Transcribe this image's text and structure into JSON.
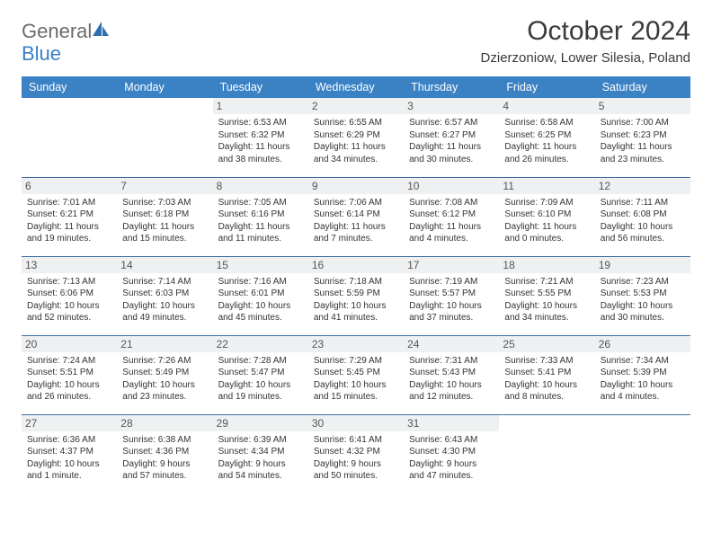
{
  "brand": {
    "part1": "General",
    "part2": "Blue"
  },
  "title": "October 2024",
  "location": "Dzierzoniow, Lower Silesia, Poland",
  "colors": {
    "header_bg": "#3b82c4",
    "header_text": "#ffffff",
    "row_divider": "#3b6fa0",
    "daynum_bg": "#eef0f2",
    "logo_gray": "#6b6b6b",
    "logo_blue": "#3b7fc4"
  },
  "weekdays": [
    "Sunday",
    "Monday",
    "Tuesday",
    "Wednesday",
    "Thursday",
    "Friday",
    "Saturday"
  ],
  "weeks": [
    [
      {
        "day": "",
        "lines": [
          "",
          "",
          ""
        ]
      },
      {
        "day": "",
        "lines": [
          "",
          "",
          ""
        ]
      },
      {
        "day": "1",
        "lines": [
          "Sunrise: 6:53 AM",
          "Sunset: 6:32 PM",
          "Daylight: 11 hours and 38 minutes."
        ]
      },
      {
        "day": "2",
        "lines": [
          "Sunrise: 6:55 AM",
          "Sunset: 6:29 PM",
          "Daylight: 11 hours and 34 minutes."
        ]
      },
      {
        "day": "3",
        "lines": [
          "Sunrise: 6:57 AM",
          "Sunset: 6:27 PM",
          "Daylight: 11 hours and 30 minutes."
        ]
      },
      {
        "day": "4",
        "lines": [
          "Sunrise: 6:58 AM",
          "Sunset: 6:25 PM",
          "Daylight: 11 hours and 26 minutes."
        ]
      },
      {
        "day": "5",
        "lines": [
          "Sunrise: 7:00 AM",
          "Sunset: 6:23 PM",
          "Daylight: 11 hours and 23 minutes."
        ]
      }
    ],
    [
      {
        "day": "6",
        "lines": [
          "Sunrise: 7:01 AM",
          "Sunset: 6:21 PM",
          "Daylight: 11 hours and 19 minutes."
        ]
      },
      {
        "day": "7",
        "lines": [
          "Sunrise: 7:03 AM",
          "Sunset: 6:18 PM",
          "Daylight: 11 hours and 15 minutes."
        ]
      },
      {
        "day": "8",
        "lines": [
          "Sunrise: 7:05 AM",
          "Sunset: 6:16 PM",
          "Daylight: 11 hours and 11 minutes."
        ]
      },
      {
        "day": "9",
        "lines": [
          "Sunrise: 7:06 AM",
          "Sunset: 6:14 PM",
          "Daylight: 11 hours and 7 minutes."
        ]
      },
      {
        "day": "10",
        "lines": [
          "Sunrise: 7:08 AM",
          "Sunset: 6:12 PM",
          "Daylight: 11 hours and 4 minutes."
        ]
      },
      {
        "day": "11",
        "lines": [
          "Sunrise: 7:09 AM",
          "Sunset: 6:10 PM",
          "Daylight: 11 hours and 0 minutes."
        ]
      },
      {
        "day": "12",
        "lines": [
          "Sunrise: 7:11 AM",
          "Sunset: 6:08 PM",
          "Daylight: 10 hours and 56 minutes."
        ]
      }
    ],
    [
      {
        "day": "13",
        "lines": [
          "Sunrise: 7:13 AM",
          "Sunset: 6:06 PM",
          "Daylight: 10 hours and 52 minutes."
        ]
      },
      {
        "day": "14",
        "lines": [
          "Sunrise: 7:14 AM",
          "Sunset: 6:03 PM",
          "Daylight: 10 hours and 49 minutes."
        ]
      },
      {
        "day": "15",
        "lines": [
          "Sunrise: 7:16 AM",
          "Sunset: 6:01 PM",
          "Daylight: 10 hours and 45 minutes."
        ]
      },
      {
        "day": "16",
        "lines": [
          "Sunrise: 7:18 AM",
          "Sunset: 5:59 PM",
          "Daylight: 10 hours and 41 minutes."
        ]
      },
      {
        "day": "17",
        "lines": [
          "Sunrise: 7:19 AM",
          "Sunset: 5:57 PM",
          "Daylight: 10 hours and 37 minutes."
        ]
      },
      {
        "day": "18",
        "lines": [
          "Sunrise: 7:21 AM",
          "Sunset: 5:55 PM",
          "Daylight: 10 hours and 34 minutes."
        ]
      },
      {
        "day": "19",
        "lines": [
          "Sunrise: 7:23 AM",
          "Sunset: 5:53 PM",
          "Daylight: 10 hours and 30 minutes."
        ]
      }
    ],
    [
      {
        "day": "20",
        "lines": [
          "Sunrise: 7:24 AM",
          "Sunset: 5:51 PM",
          "Daylight: 10 hours and 26 minutes."
        ]
      },
      {
        "day": "21",
        "lines": [
          "Sunrise: 7:26 AM",
          "Sunset: 5:49 PM",
          "Daylight: 10 hours and 23 minutes."
        ]
      },
      {
        "day": "22",
        "lines": [
          "Sunrise: 7:28 AM",
          "Sunset: 5:47 PM",
          "Daylight: 10 hours and 19 minutes."
        ]
      },
      {
        "day": "23",
        "lines": [
          "Sunrise: 7:29 AM",
          "Sunset: 5:45 PM",
          "Daylight: 10 hours and 15 minutes."
        ]
      },
      {
        "day": "24",
        "lines": [
          "Sunrise: 7:31 AM",
          "Sunset: 5:43 PM",
          "Daylight: 10 hours and 12 minutes."
        ]
      },
      {
        "day": "25",
        "lines": [
          "Sunrise: 7:33 AM",
          "Sunset: 5:41 PM",
          "Daylight: 10 hours and 8 minutes."
        ]
      },
      {
        "day": "26",
        "lines": [
          "Sunrise: 7:34 AM",
          "Sunset: 5:39 PM",
          "Daylight: 10 hours and 4 minutes."
        ]
      }
    ],
    [
      {
        "day": "27",
        "lines": [
          "Sunrise: 6:36 AM",
          "Sunset: 4:37 PM",
          "Daylight: 10 hours and 1 minute."
        ]
      },
      {
        "day": "28",
        "lines": [
          "Sunrise: 6:38 AM",
          "Sunset: 4:36 PM",
          "Daylight: 9 hours and 57 minutes."
        ]
      },
      {
        "day": "29",
        "lines": [
          "Sunrise: 6:39 AM",
          "Sunset: 4:34 PM",
          "Daylight: 9 hours and 54 minutes."
        ]
      },
      {
        "day": "30",
        "lines": [
          "Sunrise: 6:41 AM",
          "Sunset: 4:32 PM",
          "Daylight: 9 hours and 50 minutes."
        ]
      },
      {
        "day": "31",
        "lines": [
          "Sunrise: 6:43 AM",
          "Sunset: 4:30 PM",
          "Daylight: 9 hours and 47 minutes."
        ]
      },
      {
        "day": "",
        "lines": [
          "",
          "",
          ""
        ]
      },
      {
        "day": "",
        "lines": [
          "",
          "",
          ""
        ]
      }
    ]
  ]
}
